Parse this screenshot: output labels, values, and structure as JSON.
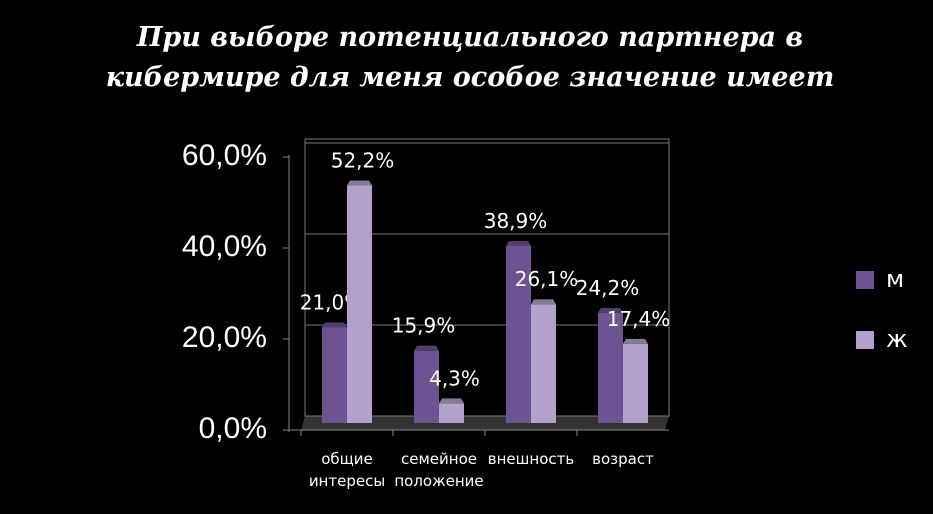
{
  "chart_data": {
    "type": "bar",
    "title": "При выборе потенциального партнера в кибермире для меня особое значение имеет",
    "categories": [
      "общие интересы",
      "семейное положение",
      "внешность",
      "возраст"
    ],
    "series": [
      {
        "name": "м",
        "color": "#6e5393",
        "values": [
          21.0,
          15.9,
          38.9,
          24.2
        ],
        "value_labels": [
          "21,0%",
          "15,9%",
          "38,9%",
          "24,2%"
        ]
      },
      {
        "name": "ж",
        "color": "#b2a2cb",
        "values": [
          52.2,
          4.3,
          26.1,
          17.4
        ],
        "value_labels": [
          "52,2%",
          "4,3%",
          "26,1%",
          "17,4%"
        ]
      }
    ],
    "ylim": [
      0,
      60
    ],
    "yticks": [
      {
        "value": 0,
        "label": "0,0%"
      },
      {
        "value": 20,
        "label": "20,0%"
      },
      {
        "value": 40,
        "label": "40,0%"
      },
      {
        "value": 60,
        "label": "60,0%"
      }
    ],
    "grid": true,
    "legend": "right"
  }
}
